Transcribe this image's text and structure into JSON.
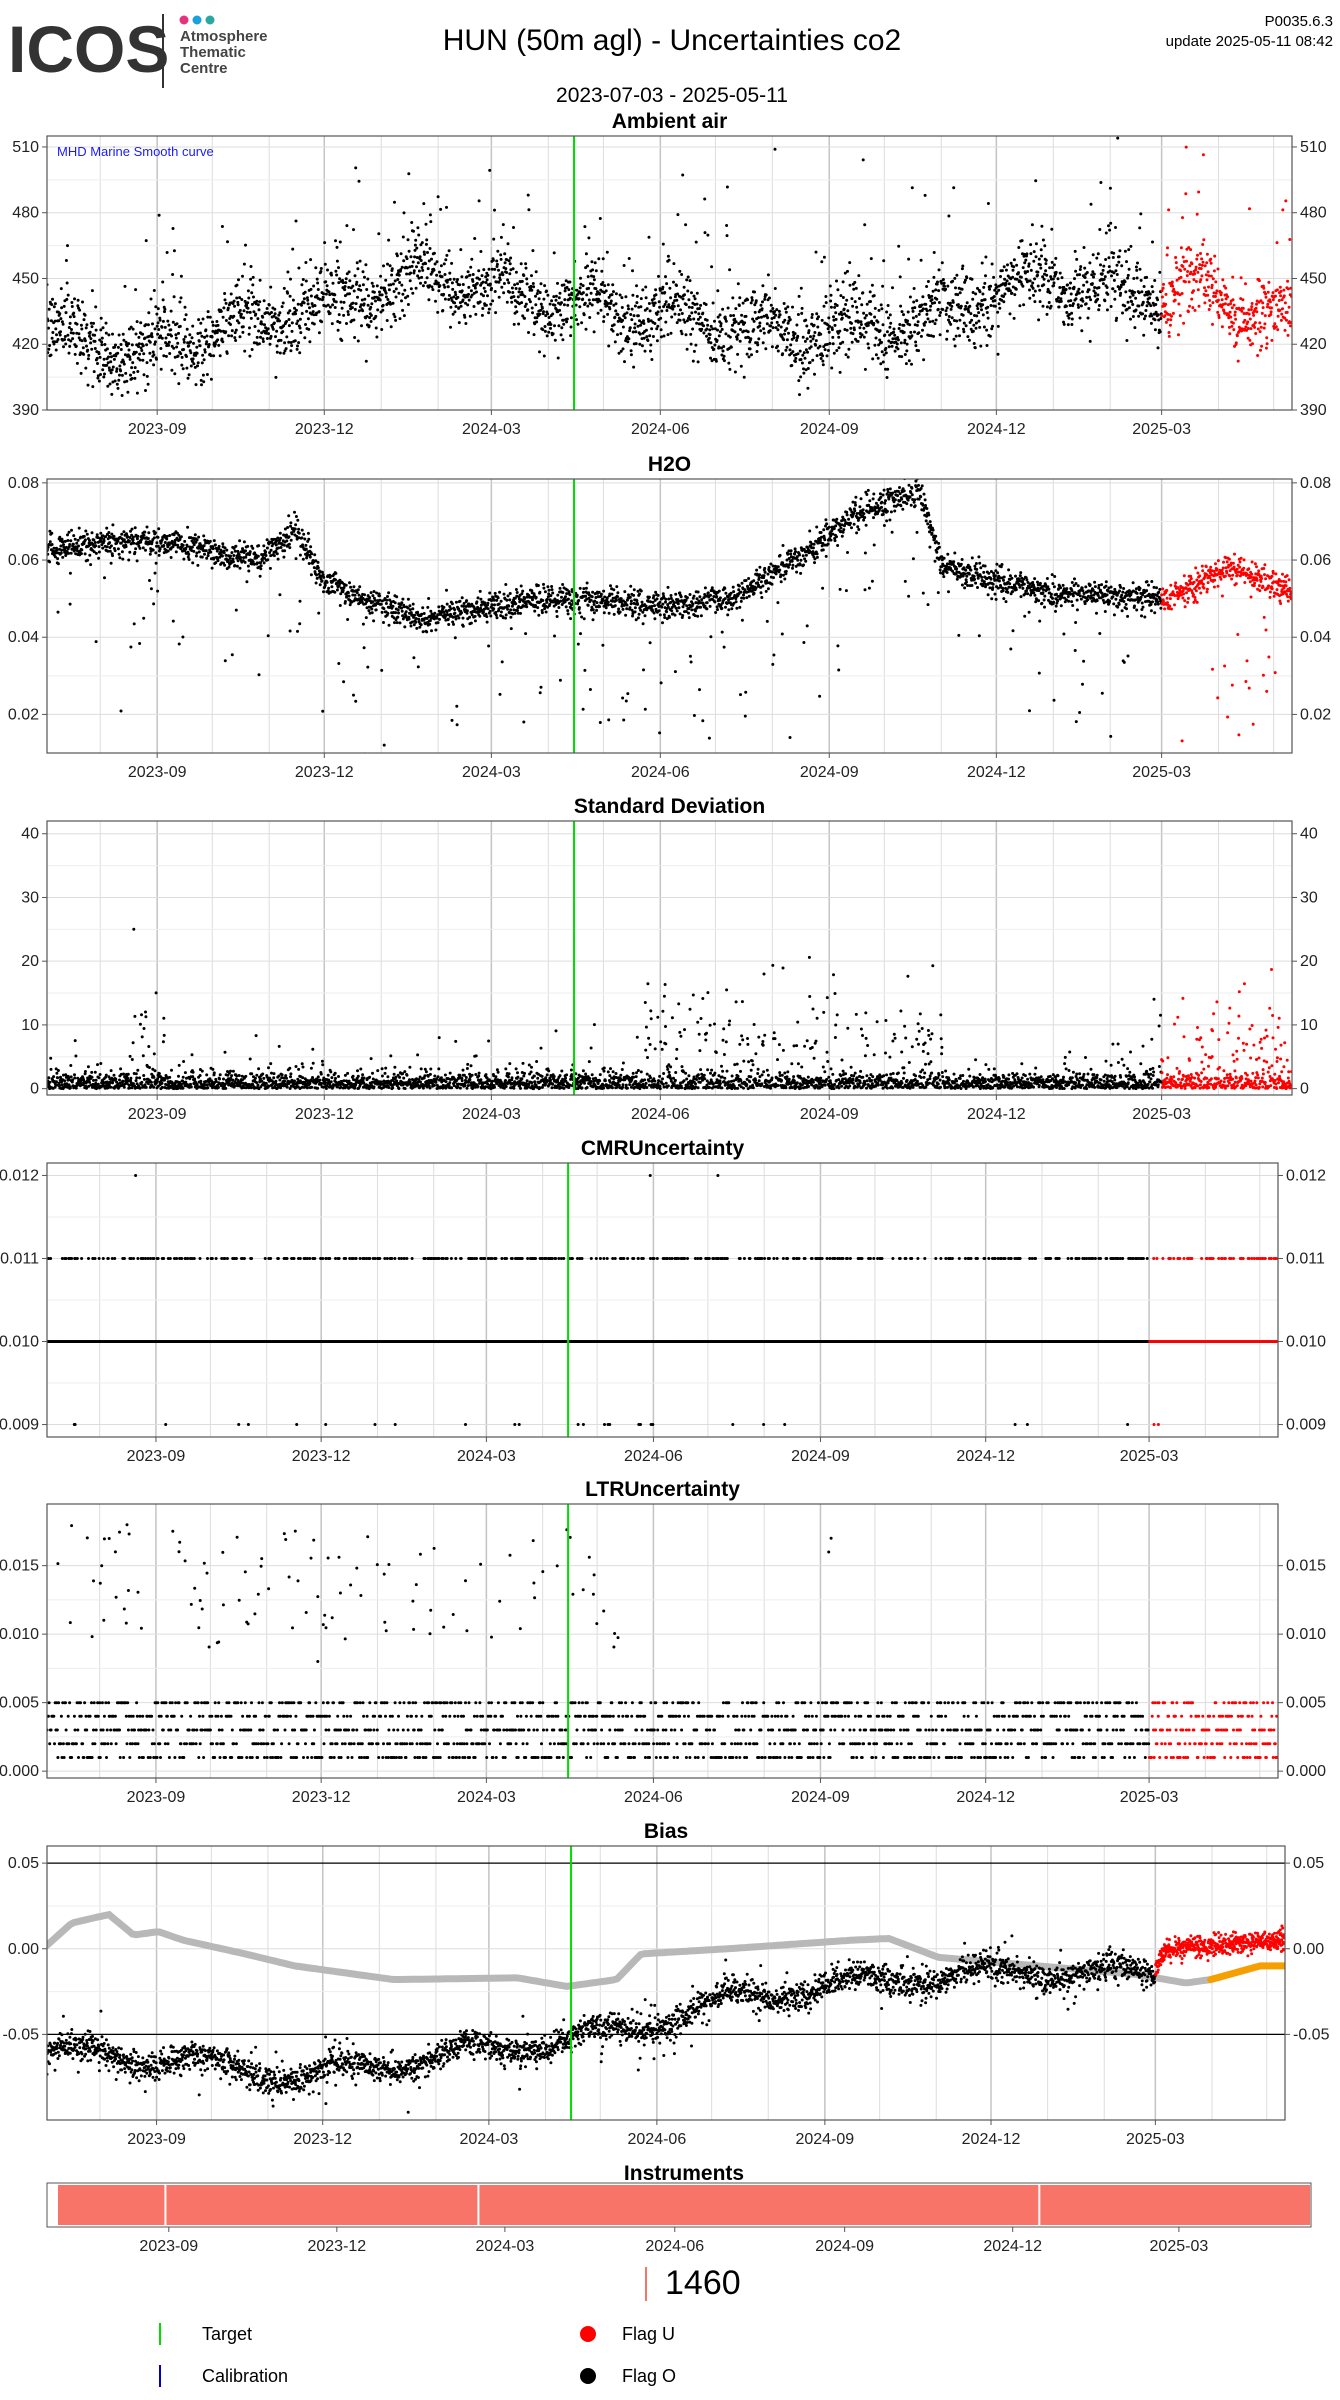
{
  "header": {
    "logo_text": "ICOS",
    "logo_sub": [
      "Atmosphere",
      "Thematic",
      "Centre"
    ],
    "logo_dot_colors": [
      "#e8317d",
      "#1aa0dc",
      "#2aa8a0"
    ],
    "title": "HUN  (50m agl) - Uncertainties co2",
    "date_range": "2023-07-03 - 2025-05-11",
    "version": "P0035.6.3",
    "update": "update  2025-05-11 08:42"
  },
  "colors": {
    "flag_o": "#000000",
    "flag_u": "#ff0000",
    "target": "#00dd00",
    "calibration": "#0000cc",
    "smooth_curve": "#b8b8b8",
    "bias_u_curve": "#f5a000",
    "instrument_bar": "#f87468",
    "grid": "#dddddd",
    "grid_major": "#c4c4c4"
  },
  "x_axis": {
    "start": "2023-07-03",
    "end": "2025-05-11",
    "flag_u_start": "2025-03-01",
    "target_date": "2024-04-15",
    "tick_labels": [
      "2023-09",
      "2023-12",
      "2024-03",
      "2024-06",
      "2024-09",
      "2024-12",
      "2025-03"
    ]
  },
  "chart_data": [
    {
      "type": "scatter",
      "title": "Ambient air",
      "annotation": "MHD Marine Smooth curve",
      "ylim": [
        390,
        515
      ],
      "y_ticks": [
        "390",
        "420",
        "450",
        "480",
        "510"
      ],
      "series": [
        {
          "values": [
            [
              0,
              425
            ],
            [
              0.08,
              415
            ],
            [
              0.15,
              428
            ],
            [
              0.25,
              440
            ],
            [
              0.3,
              452
            ],
            [
              0.4,
              440
            ],
            [
              0.5,
              432
            ],
            [
              0.6,
              425
            ],
            [
              0.7,
              430
            ],
            [
              0.8,
              450
            ],
            [
              0.88,
              440
            ],
            [
              0.92,
              445
            ],
            [
              1.0,
              430
            ]
          ]
        }
      ]
    },
    {
      "type": "scatter",
      "title": "H2O",
      "ylim": [
        0.01,
        0.081
      ],
      "y_ticks": [
        "0.02",
        "0.04",
        "0.06",
        "0.08"
      ],
      "series": [
        {
          "values": [
            [
              0,
              0.063
            ],
            [
              0.08,
              0.065
            ],
            [
              0.17,
              0.06
            ],
            [
              0.2,
              0.068
            ],
            [
              0.22,
              0.055
            ],
            [
              0.25,
              0.05
            ],
            [
              0.3,
              0.045
            ],
            [
              0.4,
              0.05
            ],
            [
              0.5,
              0.048
            ],
            [
              0.55,
              0.05
            ],
            [
              0.6,
              0.06
            ],
            [
              0.65,
              0.072
            ],
            [
              0.7,
              0.078
            ],
            [
              0.72,
              0.058
            ],
            [
              0.8,
              0.052
            ],
            [
              0.9,
              0.05
            ],
            [
              0.95,
              0.058
            ],
            [
              1.0,
              0.052
            ]
          ]
        }
      ]
    },
    {
      "type": "scatter",
      "title": "Standard Deviation",
      "ylim": [
        -1,
        42
      ],
      "y_ticks": [
        "0",
        "10",
        "20",
        "30",
        "40"
      ],
      "series": [
        {
          "values": [
            [
              0,
              2
            ],
            [
              0.08,
              5
            ],
            [
              0.3,
              2
            ],
            [
              0.5,
              3
            ],
            [
              0.6,
              5
            ],
            [
              0.7,
              6
            ],
            [
              0.8,
              3
            ],
            [
              1.0,
              4
            ]
          ]
        }
      ]
    },
    {
      "type": "scatter",
      "title": "CMRUncertainty",
      "ylim": [
        0.00885,
        0.01215
      ],
      "y_ticks": [
        "0.009",
        "0.010",
        "0.011",
        "0.012"
      ],
      "series": [
        {
          "values": [
            [
              0,
              0.01
            ],
            [
              1.0,
              0.01
            ]
          ]
        }
      ]
    },
    {
      "type": "scatter",
      "title": "LTRUncertainty",
      "ylim": [
        -0.0005,
        0.0195
      ],
      "y_ticks": [
        "0.000",
        "0.005",
        "0.010",
        "0.015"
      ],
      "series": [
        {
          "values": [
            [
              0,
              0.003
            ],
            [
              0.5,
              0.003
            ],
            [
              1.0,
              0.003
            ]
          ]
        }
      ]
    },
    {
      "type": "line",
      "title": "Bias",
      "ylim": [
        -0.1,
        0.06
      ],
      "y_ticks": [
        "-0.05",
        "0.00",
        "0.05"
      ],
      "series": [
        {
          "values": [
            [
              0.0,
              0.002
            ],
            [
              0.02,
              0.015
            ],
            [
              0.05,
              0.02
            ],
            [
              0.07,
              0.008
            ],
            [
              0.09,
              0.01
            ],
            [
              0.11,
              0.005
            ],
            [
              0.16,
              -0.003
            ],
            [
              0.2,
              -0.01
            ],
            [
              0.28,
              -0.018
            ],
            [
              0.38,
              -0.017
            ],
            [
              0.42,
              -0.022
            ],
            [
              0.46,
              -0.018
            ],
            [
              0.48,
              -0.003
            ],
            [
              0.55,
              0.0
            ],
            [
              0.65,
              0.005
            ],
            [
              0.68,
              0.006
            ],
            [
              0.72,
              -0.005
            ],
            [
              0.8,
              -0.01
            ],
            [
              0.88,
              -0.015
            ],
            [
              0.92,
              -0.02
            ],
            [
              0.94,
              -0.018
            ]
          ]
        },
        {
          "values": [
            [
              0.0,
              -0.06
            ],
            [
              0.1,
              -0.065
            ],
            [
              0.2,
              -0.075
            ],
            [
              0.3,
              -0.065
            ],
            [
              0.4,
              -0.055
            ],
            [
              0.46,
              -0.05
            ],
            [
              0.55,
              -0.03
            ],
            [
              0.65,
              -0.02
            ],
            [
              0.72,
              -0.015
            ],
            [
              0.8,
              -0.013
            ],
            [
              0.9,
              -0.015
            ],
            [
              0.94,
              -0.02
            ],
            [
              0.96,
              -0.015
            ],
            [
              1.0,
              0.002
            ]
          ]
        },
        {
          "values": [
            [
              0.94,
              -0.018
            ],
            [
              0.98,
              -0.01
            ],
            [
              1.0,
              -0.01
            ]
          ]
        }
      ]
    }
  ],
  "instruments": {
    "title": "Instruments",
    "count": "1460"
  },
  "legend": [
    {
      "label": "Target",
      "kind": "line",
      "color": "#00dd00"
    },
    {
      "label": "Flag U",
      "kind": "dot",
      "color": "#ff0000"
    },
    {
      "label": "Calibration",
      "kind": "line",
      "color": "#0000cc"
    },
    {
      "label": "Flag O",
      "kind": "dot",
      "color": "#000000"
    }
  ]
}
